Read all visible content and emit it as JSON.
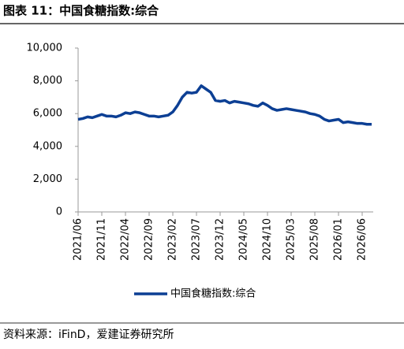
{
  "title": "图表 11：中国食糖指数:综合",
  "source": "资料来源：iFinD，爱建证券研究所",
  "chart_data": {
    "type": "line",
    "categories": [
      "2021/06",
      null,
      null,
      null,
      null,
      "2021/11",
      null,
      null,
      null,
      null,
      "2022/04",
      null,
      null,
      null,
      null,
      "2022/09",
      null,
      null,
      null,
      null,
      "2023/02",
      null,
      null,
      null,
      null,
      "2023/07",
      null,
      null,
      null,
      null,
      "2023/12",
      null,
      null,
      null,
      null,
      "2024/05",
      null,
      null,
      null,
      null,
      "2024/10",
      null,
      null,
      null,
      null,
      "2025/03",
      null,
      null,
      null,
      null,
      "2025/08",
      null,
      null,
      null,
      null,
      "2026/01",
      null,
      null,
      null,
      null,
      "2026/06",
      null,
      null
    ],
    "series": [
      {
        "name": "中国食糖指数:综合",
        "color": "#0c3f94",
        "values": [
          5650,
          5700,
          5800,
          5750,
          5850,
          5950,
          5850,
          5850,
          5800,
          5900,
          6050,
          6000,
          6100,
          6050,
          5950,
          5850,
          5850,
          5800,
          5850,
          5900,
          6100,
          6500,
          7000,
          7300,
          7250,
          7300,
          7700,
          7500,
          7300,
          6800,
          6750,
          6800,
          6650,
          6750,
          6700,
          6650,
          6600,
          6500,
          6450,
          6650,
          6500,
          6300,
          6200,
          6250,
          6300,
          6250,
          6200,
          6150,
          6100,
          6000,
          5950,
          5850,
          5650,
          5550,
          5600,
          5650,
          5450,
          5500,
          5450,
          5400,
          5400,
          5350,
          5350
        ]
      }
    ],
    "ylim": [
      0,
      10000
    ],
    "yticks": [
      0,
      {
        "value": 2000,
        "label": "2,000"
      },
      {
        "value": 4000,
        "label": "4,000"
      },
      {
        "value": 6000,
        "label": "6,000"
      },
      {
        "value": 8000,
        "label": "8,000"
      },
      {
        "value": 10000,
        "label": "10,000"
      }
    ]
  }
}
